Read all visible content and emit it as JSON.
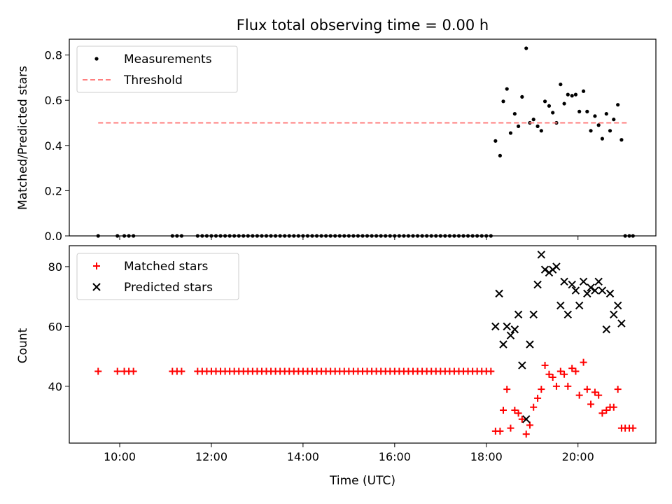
{
  "chart_data": {
    "title": "Flux total observing time = 0.00 h",
    "xlabel": "Time (UTC)",
    "x_unit": "hours UTC",
    "x_ticks": [
      10,
      12,
      14,
      16,
      18,
      20
    ],
    "x_tick_labels": [
      "10:00",
      "12:00",
      "14:00",
      "16:00",
      "18:00",
      "20:00"
    ],
    "xlim": [
      8.9,
      21.7
    ],
    "panels": [
      {
        "type": "scatter",
        "ylabel": "Matched/Predicted stars",
        "ylim": [
          0,
          0.87
        ],
        "y_ticks": [
          0.0,
          0.2,
          0.4,
          0.6,
          0.8
        ],
        "y_tick_labels": [
          "0.0",
          "0.2",
          "0.4",
          "0.6",
          "0.8"
        ],
        "legend_position": "upper-left",
        "series": [
          {
            "name": "Measurements",
            "marker": "dot",
            "color": "#000000",
            "x": [
              9.53,
              9.95,
              10.1,
              10.2,
              10.3,
              11.15,
              11.25,
              11.35,
              11.7,
              11.8,
              11.9,
              12.0,
              12.1,
              12.2,
              12.3,
              12.4,
              12.5,
              12.6,
              12.7,
              12.8,
              12.9,
              13.0,
              13.1,
              13.2,
              13.3,
              13.4,
              13.5,
              13.6,
              13.7,
              13.8,
              13.9,
              14.0,
              14.1,
              14.2,
              14.3,
              14.4,
              14.5,
              14.6,
              14.7,
              14.8,
              14.9,
              15.0,
              15.1,
              15.2,
              15.3,
              15.4,
              15.5,
              15.6,
              15.7,
              15.8,
              15.9,
              16.0,
              16.1,
              16.2,
              16.3,
              16.4,
              16.5,
              16.6,
              16.7,
              16.8,
              16.9,
              17.0,
              17.1,
              17.2,
              17.3,
              17.4,
              17.5,
              17.6,
              17.7,
              17.8,
              17.9,
              18.0,
              18.1,
              18.2,
              18.3,
              18.37,
              18.45,
              18.53,
              18.62,
              18.7,
              18.78,
              18.87,
              18.95,
              19.03,
              19.12,
              19.2,
              19.28,
              19.37,
              19.45,
              19.53,
              19.62,
              19.7,
              19.78,
              19.87,
              19.95,
              20.03,
              20.12,
              20.2,
              20.28,
              20.37,
              20.45,
              20.53,
              20.62,
              20.7,
              20.78,
              20.87,
              20.95,
              21.03,
              21.12,
              21.2
            ],
            "y": [
              0,
              0,
              0,
              0,
              0,
              0,
              0,
              0,
              0,
              0,
              0,
              0,
              0,
              0,
              0,
              0,
              0,
              0,
              0,
              0,
              0,
              0,
              0,
              0,
              0,
              0,
              0,
              0,
              0,
              0,
              0,
              0,
              0,
              0,
              0,
              0,
              0,
              0,
              0,
              0,
              0,
              0,
              0,
              0,
              0,
              0,
              0,
              0,
              0,
              0,
              0,
              0,
              0,
              0,
              0,
              0,
              0,
              0,
              0,
              0,
              0,
              0,
              0,
              0,
              0,
              0,
              0,
              0,
              0,
              0,
              0,
              0,
              0,
              0.42,
              0.355,
              0.595,
              0.65,
              0.455,
              0.54,
              0.485,
              0.615,
              0.83,
              0.5,
              0.515,
              0.485,
              0.465,
              0.595,
              0.575,
              0.545,
              0.5,
              0.67,
              0.585,
              0.625,
              0.62,
              0.625,
              0.55,
              0.64,
              0.55,
              0.465,
              0.53,
              0.49,
              0.43,
              0.54,
              0.465,
              0.515,
              0.58,
              0.425,
              0,
              0,
              0
            ]
          },
          {
            "name": "Threshold",
            "type": "line",
            "style": "dashed",
            "color": "#ff7f7f",
            "x": [
              9.53,
              21.12
            ],
            "y": [
              0.5,
              0.5
            ]
          }
        ]
      },
      {
        "type": "scatter",
        "ylabel": "Count",
        "ylim": [
          21,
          87
        ],
        "y_ticks": [
          40,
          60,
          80
        ],
        "y_tick_labels": [
          "40",
          "60",
          "80"
        ],
        "legend_position": "upper-left",
        "series": [
          {
            "name": "Matched stars",
            "marker": "plus",
            "color": "#ff0000",
            "x": [
              9.53,
              9.95,
              10.1,
              10.2,
              10.3,
              11.15,
              11.25,
              11.35,
              11.7,
              11.8,
              11.9,
              12.0,
              12.1,
              12.2,
              12.3,
              12.4,
              12.5,
              12.6,
              12.7,
              12.8,
              12.9,
              13.0,
              13.1,
              13.2,
              13.3,
              13.4,
              13.5,
              13.6,
              13.7,
              13.8,
              13.9,
              14.0,
              14.1,
              14.2,
              14.3,
              14.4,
              14.5,
              14.6,
              14.7,
              14.8,
              14.9,
              15.0,
              15.1,
              15.2,
              15.3,
              15.4,
              15.5,
              15.6,
              15.7,
              15.8,
              15.9,
              16.0,
              16.1,
              16.2,
              16.3,
              16.4,
              16.5,
              16.6,
              16.7,
              16.8,
              16.9,
              17.0,
              17.1,
              17.2,
              17.3,
              17.4,
              17.5,
              17.6,
              17.7,
              17.8,
              17.9,
              18.0,
              18.1,
              18.2,
              18.3,
              18.37,
              18.45,
              18.53,
              18.62,
              18.7,
              18.78,
              18.87,
              18.95,
              19.03,
              19.12,
              19.2,
              19.28,
              19.37,
              19.45,
              19.53,
              19.62,
              19.7,
              19.78,
              19.87,
              19.95,
              20.03,
              20.12,
              20.2,
              20.28,
              20.37,
              20.45,
              20.53,
              20.62,
              20.7,
              20.78,
              20.87,
              20.95,
              21.03,
              21.12,
              21.2
            ],
            "y": [
              45,
              45,
              45,
              45,
              45,
              45,
              45,
              45,
              45,
              45,
              45,
              45,
              45,
              45,
              45,
              45,
              45,
              45,
              45,
              45,
              45,
              45,
              45,
              45,
              45,
              45,
              45,
              45,
              45,
              45,
              45,
              45,
              45,
              45,
              45,
              45,
              45,
              45,
              45,
              45,
              45,
              45,
              45,
              45,
              45,
              45,
              45,
              45,
              45,
              45,
              45,
              45,
              45,
              45,
              45,
              45,
              45,
              45,
              45,
              45,
              45,
              45,
              45,
              45,
              45,
              45,
              45,
              45,
              45,
              45,
              45,
              45,
              45,
              25,
              25,
              32,
              39,
              26,
              32,
              31,
              29,
              24,
              27,
              33,
              36,
              39,
              47,
              44,
              43,
              40,
              45,
              44,
              40,
              46,
              45,
              37,
              48,
              39,
              34,
              38,
              37,
              31,
              32,
              33,
              33,
              39,
              26,
              26,
              26,
              26
            ]
          },
          {
            "name": "Predicted stars",
            "marker": "x",
            "color": "#000000",
            "x": [
              18.2,
              18.28,
              18.37,
              18.45,
              18.53,
              18.62,
              18.7,
              18.78,
              18.87,
              18.95,
              19.03,
              19.12,
              19.2,
              19.28,
              19.37,
              19.45,
              19.53,
              19.62,
              19.7,
              19.78,
              19.87,
              19.95,
              20.03,
              20.12,
              20.2,
              20.28,
              20.37,
              20.45,
              20.53,
              20.62,
              20.7,
              20.78,
              20.87,
              20.95
            ],
            "y": [
              60,
              71,
              54,
              60,
              57,
              59,
              64,
              47,
              29,
              54,
              64,
              74,
              84,
              79,
              78,
              79,
              80,
              67,
              75,
              64,
              74,
              72,
              67,
              75,
              71,
              73,
              72,
              75,
              72,
              59,
              71,
              64,
              67,
              61
            ]
          }
        ]
      }
    ]
  }
}
